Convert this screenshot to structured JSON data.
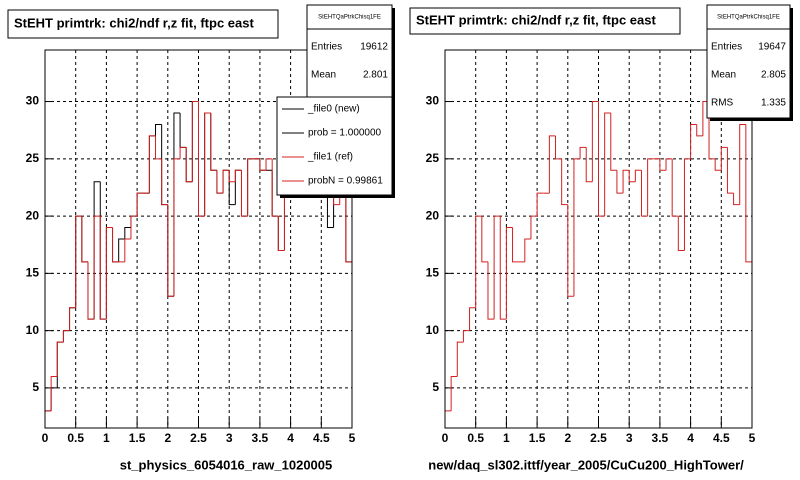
{
  "chart_data": [
    {
      "type": "histogram",
      "title": "StEHT primtrk: chi2/ndf r,z fit, ftpc east",
      "caption": "st_physics_6054016_raw_1020005",
      "bins": [
        0,
        0.1,
        0.2,
        0.3,
        0.4,
        0.5,
        0.6,
        0.7,
        0.8,
        0.9,
        1,
        1.1,
        1.2,
        1.3,
        1.4,
        1.5,
        1.6,
        1.7,
        1.8,
        1.9,
        2,
        2.1,
        2.2,
        2.3,
        2.4,
        2.5,
        2.6,
        2.7,
        2.8,
        2.9,
        3,
        3.1,
        3.2,
        3.3,
        3.4,
        3.5,
        3.6,
        3.7,
        3.8,
        3.9,
        4,
        4.1,
        4.2,
        4.3,
        4.4,
        4.5,
        4.6,
        4.7,
        4.8,
        4.9,
        5
      ],
      "series": [
        {
          "name": "_file0 (new)",
          "color": "#000000",
          "values": [
            3,
            5,
            9,
            10,
            12,
            20,
            16,
            11,
            23,
            11,
            19,
            16,
            18,
            19,
            20,
            22,
            22,
            27,
            28,
            21,
            13,
            29,
            26,
            23,
            30,
            20,
            29,
            24,
            22,
            24,
            21,
            24,
            20,
            25,
            25,
            24,
            24,
            20,
            17,
            25,
            28,
            27,
            30,
            25,
            24,
            26,
            19,
            22,
            28,
            16
          ]
        },
        {
          "name": "_file1 (ref)",
          "color": "#d42020",
          "values": [
            3,
            6,
            9,
            10,
            12,
            20,
            16,
            11,
            20,
            11,
            19,
            16,
            16,
            18,
            20,
            22,
            22,
            27,
            25,
            21,
            13,
            25,
            26,
            23,
            30,
            20,
            29,
            24,
            22,
            24,
            23,
            24,
            20,
            25,
            25,
            24,
            25,
            20,
            17,
            25,
            28,
            27,
            30,
            25,
            24,
            26,
            22,
            21,
            28,
            16
          ]
        }
      ],
      "legend_notes": [
        "prob = 1.000000",
        "probN = 0.99861"
      ],
      "stats": {
        "name": "StEHTQaPtrkChisq1FE",
        "rows": [
          {
            "label": "Entries",
            "value": 19612
          },
          {
            "label": "Mean",
            "value": 2.801
          }
        ]
      },
      "xlim": [
        0,
        5
      ],
      "xticks": [
        0,
        0.5,
        1,
        1.5,
        2,
        2.5,
        3,
        3.5,
        4,
        4.5,
        5
      ],
      "ylim": [
        1.5,
        34.5
      ],
      "yticks": [
        5,
        10,
        15,
        20,
        25,
        30
      ],
      "grid": true
    },
    {
      "type": "histogram",
      "title": "StEHT primtrk: chi2/ndf r,z fit, ftpc east",
      "caption": "new/daq_sl302.ittf/year_2005/CuCu200_HighTower/",
      "bins": [
        0,
        0.1,
        0.2,
        0.3,
        0.4,
        0.5,
        0.6,
        0.7,
        0.8,
        0.9,
        1,
        1.1,
        1.2,
        1.3,
        1.4,
        1.5,
        1.6,
        1.7,
        1.8,
        1.9,
        2,
        2.1,
        2.2,
        2.3,
        2.4,
        2.5,
        2.6,
        2.7,
        2.8,
        2.9,
        3,
        3.1,
        3.2,
        3.3,
        3.4,
        3.5,
        3.6,
        3.7,
        3.8,
        3.9,
        4,
        4.1,
        4.2,
        4.3,
        4.4,
        4.5,
        4.6,
        4.7,
        4.8,
        4.9,
        5
      ],
      "color": "#d42020",
      "values": [
        3,
        6,
        9,
        10,
        12,
        20,
        16,
        11,
        20,
        11,
        19,
        16,
        16,
        18,
        20,
        22,
        22,
        27,
        25,
        21,
        13,
        25,
        26,
        23,
        30,
        20,
        29,
        24,
        22,
        24,
        23,
        24,
        20,
        25,
        25,
        24,
        25,
        20,
        17,
        25,
        28,
        27,
        30,
        25,
        24,
        26,
        22,
        21,
        28,
        16
      ],
      "stats": {
        "name": "StEHTQaPtrkChisq1FE",
        "rows": [
          {
            "label": "Entries",
            "value": 19647
          },
          {
            "label": "Mean",
            "value": 2.805
          },
          {
            "label": "RMS",
            "value": 1.335
          }
        ]
      },
      "xlim": [
        0,
        5
      ],
      "xticks": [
        0,
        0.5,
        1,
        1.5,
        2,
        2.5,
        3,
        3.5,
        4,
        4.5,
        5
      ],
      "ylim": [
        1.5,
        34.5
      ],
      "yticks": [
        5,
        10,
        15,
        20,
        25,
        30
      ],
      "grid": true
    }
  ]
}
